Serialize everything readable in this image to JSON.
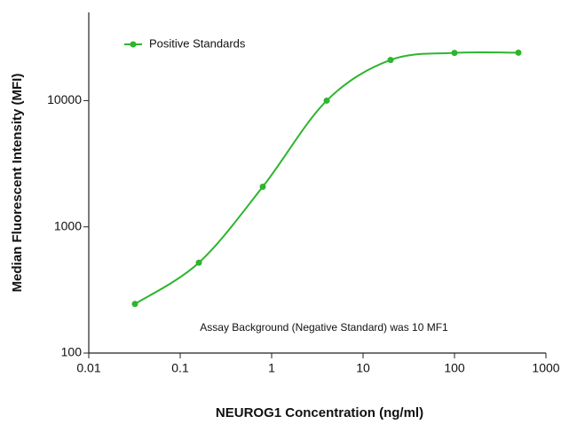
{
  "chart_data": {
    "type": "scatter",
    "x_label": "NEUROG1 Concentration (ng/ml)",
    "y_label": "Median  Fluorescent Intensity  (MFI)",
    "annotation": "Assay Background  (Negative Standard) was 10 MF1",
    "x_log": true,
    "y_log": true,
    "smooth_line": true,
    "legend": "top-left",
    "series": [
      {
        "name": "Positive Standards",
        "color": "#2db52d",
        "x": [
          0.032,
          0.16,
          0.8,
          4,
          20,
          100,
          500
        ],
        "values": [
          245,
          520,
          2080,
          10000,
          21000,
          23900,
          24000
        ]
      }
    ],
    "xlim": [
      0.01,
      1000
    ],
    "xticks": [
      0.01,
      0.1,
      1,
      10,
      100,
      1000
    ],
    "ylim": [
      100,
      50000
    ],
    "yticks": [
      100,
      1000,
      10000
    ]
  }
}
